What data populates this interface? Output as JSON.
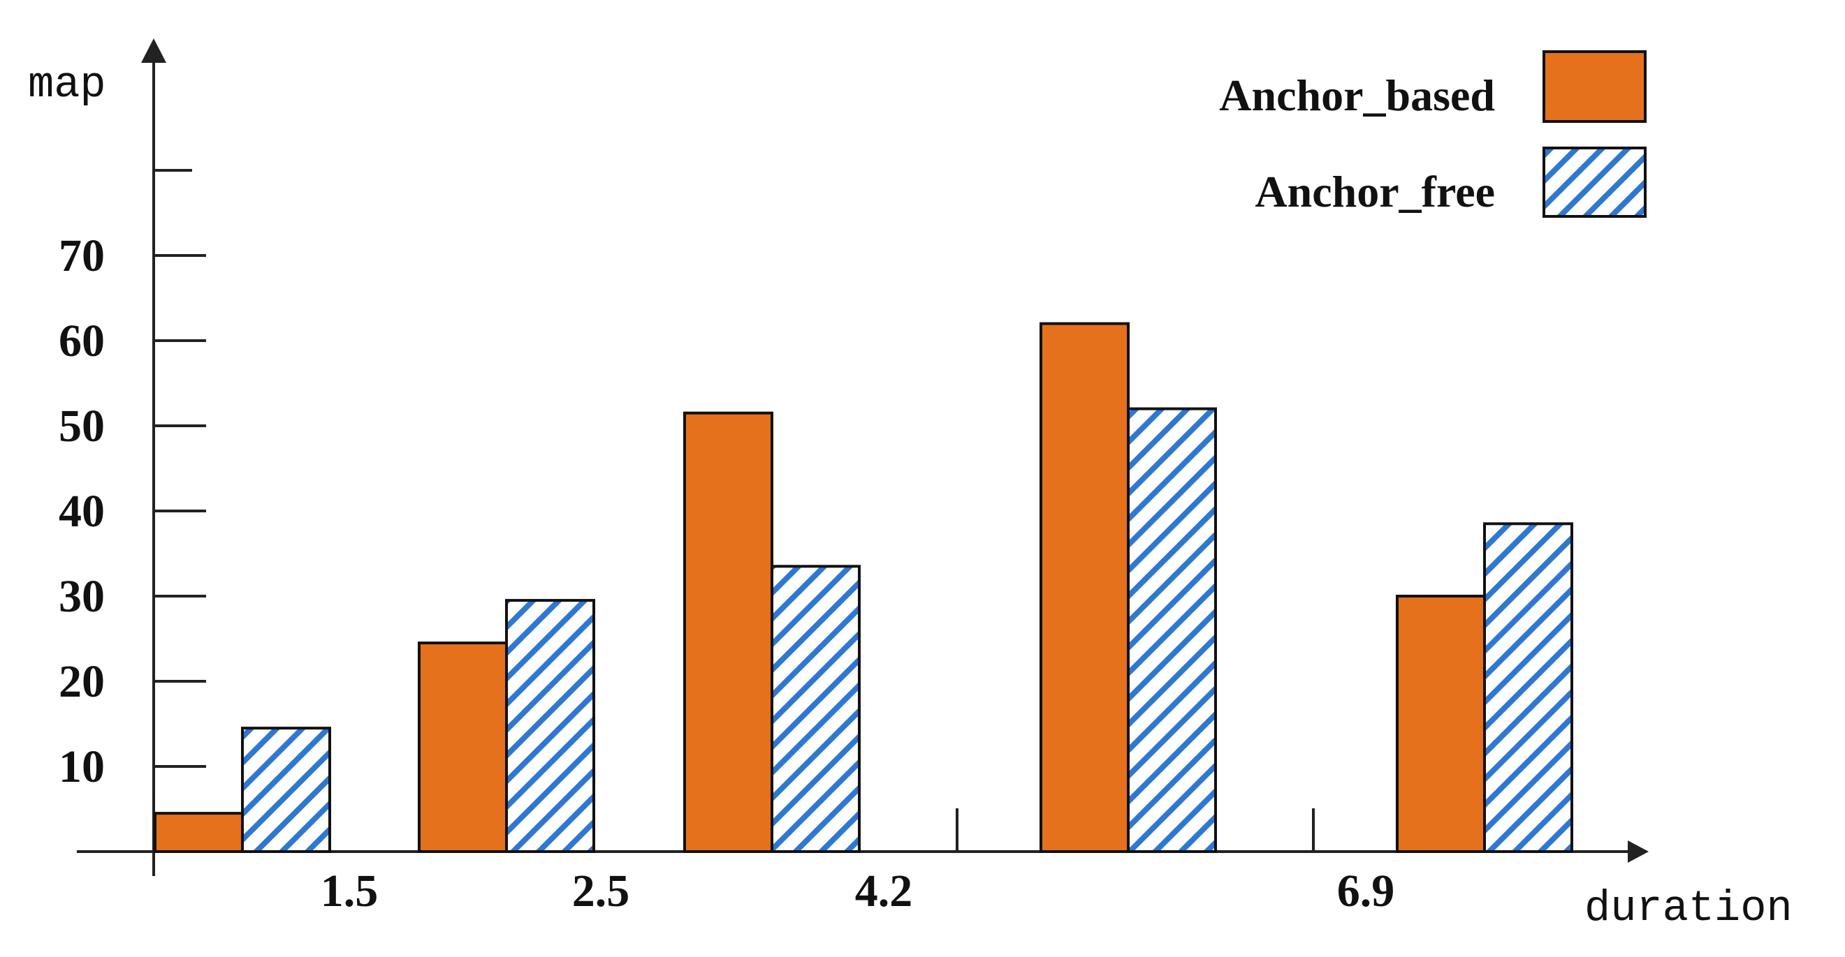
{
  "chart_data": {
    "type": "bar",
    "x_tick_labels": [
      "1.5",
      "2.5",
      "4.2",
      "6.9"
    ],
    "xlabel": "duration",
    "ylabel": "map",
    "y_ticks": [
      10,
      20,
      30,
      40,
      50,
      60,
      70
    ],
    "ylim": [
      0,
      80
    ],
    "legend_position": "top-right",
    "series": [
      {
        "name": "Anchor_based",
        "values": [
          4.5,
          24.5,
          51.5,
          62,
          30
        ],
        "color": "#e5711c",
        "pattern": "solid"
      },
      {
        "name": "Anchor_free",
        "values": [
          14.5,
          29.5,
          33.5,
          52,
          38.5
        ],
        "color": "#2e78d2",
        "pattern": "diagonal-hatch"
      }
    ],
    "grid": false
  }
}
